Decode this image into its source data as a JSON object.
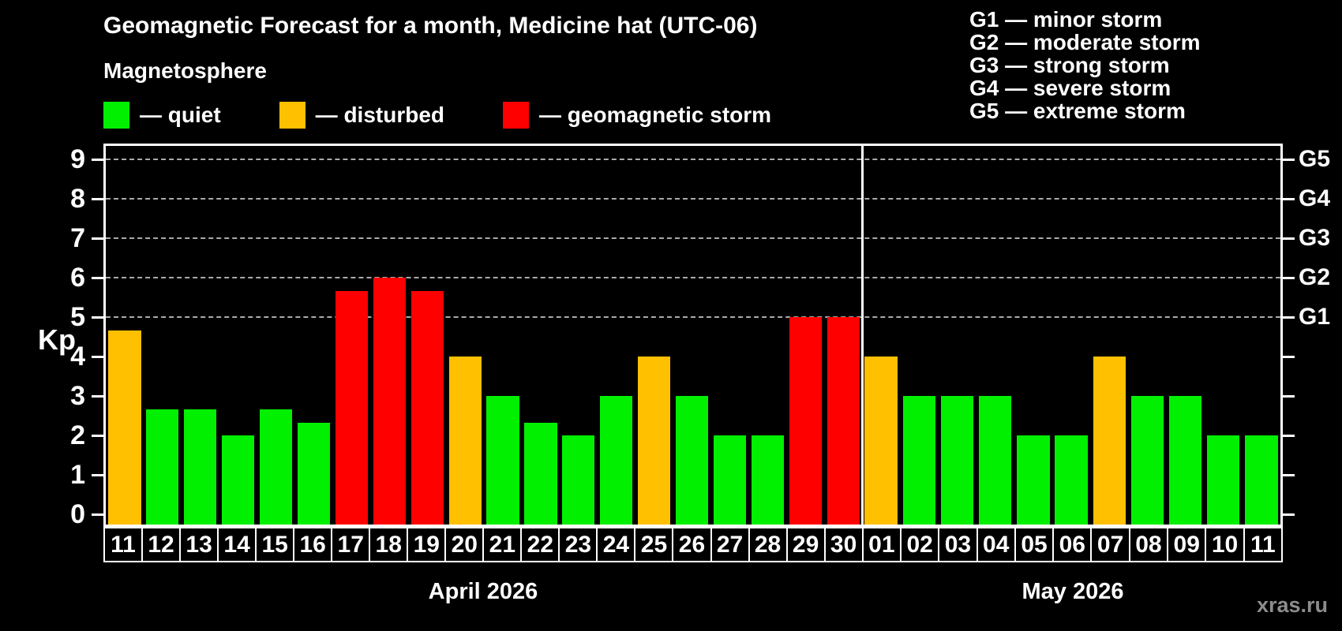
{
  "title": "Geomagnetic Forecast for a month, Medicine hat (UTC-06)",
  "subtitle": "Magnetosphere",
  "legend": [
    {
      "key": "quiet",
      "label": "— quiet",
      "color": "#00f000"
    },
    {
      "key": "disturbed",
      "label": "— disturbed",
      "color": "#ffc000"
    },
    {
      "key": "storm",
      "label": "— geomagnetic storm",
      "color": "#ff0000"
    }
  ],
  "storm_scale": [
    "G1 — minor storm",
    "G2 — moderate storm",
    "G3 — strong storm",
    "G4 — severe storm",
    "G5 — extreme storm"
  ],
  "watermark": "xras.ru",
  "colors": {
    "quiet": "#00f000",
    "disturbed": "#ffc000",
    "storm": "#ff0000",
    "grid": "#aaaaaa",
    "frame": "#ffffff",
    "background": "#000000",
    "watermark": "#8c8c8c"
  },
  "chart_data": {
    "type": "bar",
    "ylabel": "Kp",
    "ylim": [
      0,
      9.7
    ],
    "yticks": [
      0,
      1,
      2,
      3,
      4,
      5,
      6,
      7,
      8,
      9
    ],
    "gridlines_at": [
      5,
      6,
      7,
      8,
      9
    ],
    "grid": "dashed, only at storm levels G1–G5",
    "legend_position": "top-left and top-right",
    "right_axis": [
      {
        "kp": 5,
        "label": "G1"
      },
      {
        "kp": 6,
        "label": "G2"
      },
      {
        "kp": 7,
        "label": "G3"
      },
      {
        "kp": 8,
        "label": "G4"
      },
      {
        "kp": 9,
        "label": "G5"
      }
    ],
    "months": [
      {
        "label": "April 2026",
        "days": [
          {
            "day": "11",
            "kp": 4.67,
            "status": "disturbed"
          },
          {
            "day": "12",
            "kp": 2.67,
            "status": "quiet"
          },
          {
            "day": "13",
            "kp": 2.67,
            "status": "quiet"
          },
          {
            "day": "14",
            "kp": 2.0,
            "status": "quiet"
          },
          {
            "day": "15",
            "kp": 2.67,
            "status": "quiet"
          },
          {
            "day": "16",
            "kp": 2.33,
            "status": "quiet"
          },
          {
            "day": "17",
            "kp": 5.67,
            "status": "storm"
          },
          {
            "day": "18",
            "kp": 6.0,
            "status": "storm"
          },
          {
            "day": "19",
            "kp": 5.67,
            "status": "storm"
          },
          {
            "day": "20",
            "kp": 4.0,
            "status": "disturbed"
          },
          {
            "day": "21",
            "kp": 3.0,
            "status": "quiet"
          },
          {
            "day": "22",
            "kp": 2.33,
            "status": "quiet"
          },
          {
            "day": "23",
            "kp": 2.0,
            "status": "quiet"
          },
          {
            "day": "24",
            "kp": 3.0,
            "status": "quiet"
          },
          {
            "day": "25",
            "kp": 4.0,
            "status": "disturbed"
          },
          {
            "day": "26",
            "kp": 3.0,
            "status": "quiet"
          },
          {
            "day": "27",
            "kp": 2.0,
            "status": "quiet"
          },
          {
            "day": "28",
            "kp": 2.0,
            "status": "quiet"
          },
          {
            "day": "29",
            "kp": 5.0,
            "status": "storm"
          },
          {
            "day": "30",
            "kp": 5.0,
            "status": "storm"
          }
        ]
      },
      {
        "label": "May 2026",
        "days": [
          {
            "day": "01",
            "kp": 4.0,
            "status": "disturbed"
          },
          {
            "day": "02",
            "kp": 3.0,
            "status": "quiet"
          },
          {
            "day": "03",
            "kp": 3.0,
            "status": "quiet"
          },
          {
            "day": "04",
            "kp": 3.0,
            "status": "quiet"
          },
          {
            "day": "05",
            "kp": 2.0,
            "status": "quiet"
          },
          {
            "day": "06",
            "kp": 2.0,
            "status": "quiet"
          },
          {
            "day": "07",
            "kp": 4.0,
            "status": "disturbed"
          },
          {
            "day": "08",
            "kp": 3.0,
            "status": "quiet"
          },
          {
            "day": "09",
            "kp": 3.0,
            "status": "quiet"
          },
          {
            "day": "10",
            "kp": 2.0,
            "status": "quiet"
          },
          {
            "day": "11",
            "kp": 2.0,
            "status": "quiet"
          }
        ]
      }
    ]
  }
}
